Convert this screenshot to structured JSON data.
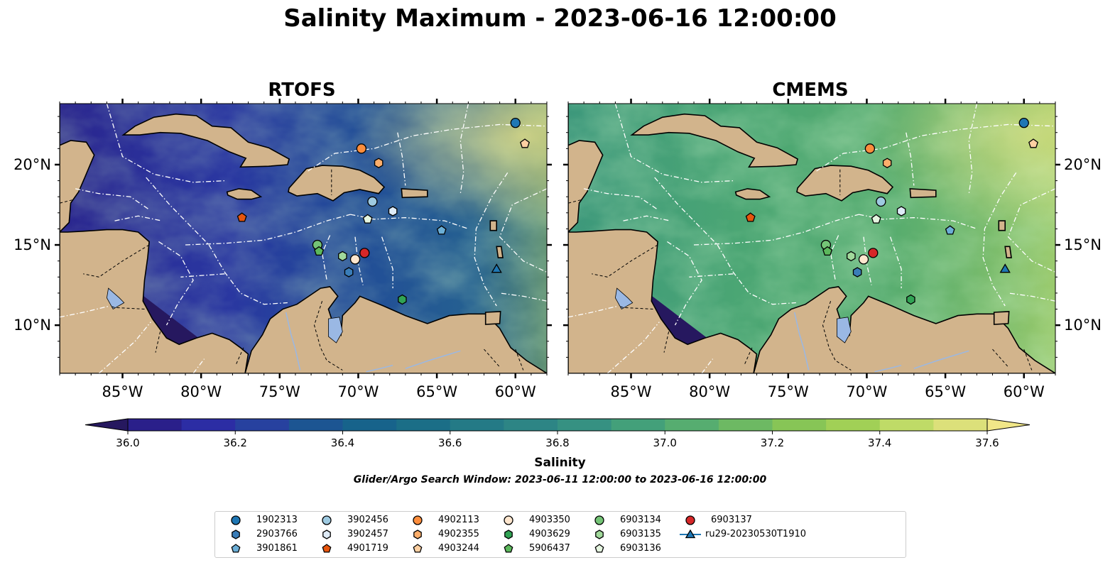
{
  "figure": {
    "title": "Salinity Maximum - 2023-06-16 12:00:00",
    "panels": [
      {
        "title": "RTOFS"
      },
      {
        "title": "CMEMS"
      }
    ],
    "lat_ticks": [
      "20°N",
      "15°N",
      "10°N"
    ],
    "lon_ticks": [
      "85°W",
      "80°W",
      "75°W",
      "70°W",
      "65°W",
      "60°W"
    ],
    "colorbar": {
      "label": "Salinity",
      "ticks": [
        "36.0",
        "36.2",
        "36.4",
        "36.6",
        "36.8",
        "37.0",
        "37.2",
        "37.4",
        "37.6"
      ],
      "range": [
        36.0,
        37.6
      ],
      "extend": "both",
      "colormap": "haline-like",
      "colors": [
        "#26185f",
        "#2a1f8a",
        "#2c2da4",
        "#27419f",
        "#1c5592",
        "#17638b",
        "#1b6e87",
        "#247a86",
        "#2d8585",
        "#369182",
        "#43a07a",
        "#56ad70",
        "#6db963",
        "#87c556",
        "#a1d056",
        "#bfdb67",
        "#dce07a",
        "#f1e788"
      ]
    },
    "search_window": "Glider/Argo Search Window: 2023-06-11 12:00:00 to 2023-06-16 12:00:00",
    "land_color": "#d2b48c",
    "lake_color": "#9ab8e4"
  },
  "legend": [
    {
      "label": "1902313",
      "marker": "circle",
      "color": "#1f77b4"
    },
    {
      "label": "2903766",
      "marker": "hexagon",
      "color": "#3a7db8"
    },
    {
      "label": "3901861",
      "marker": "pentagon",
      "color": "#6baed6"
    },
    {
      "label": "3902456",
      "marker": "circle",
      "color": "#9ecae1"
    },
    {
      "label": "3902457",
      "marker": "hexagon",
      "color": "#deebf7"
    },
    {
      "label": "4901719",
      "marker": "pentagon",
      "color": "#e6550d"
    },
    {
      "label": "4902113",
      "marker": "circle",
      "color": "#fd8d3c"
    },
    {
      "label": "4902355",
      "marker": "hexagon",
      "color": "#fdae6b"
    },
    {
      "label": "4903244",
      "marker": "pentagon",
      "color": "#fdd0a2"
    },
    {
      "label": "4903350",
      "marker": "circle",
      "color": "#fee6ce"
    },
    {
      "label": "4903629",
      "marker": "hexagon",
      "color": "#31a354"
    },
    {
      "label": "5906437",
      "marker": "pentagon",
      "color": "#5cb85c"
    },
    {
      "label": "6903134",
      "marker": "circle",
      "color": "#74c476"
    },
    {
      "label": "6903135",
      "marker": "hexagon",
      "color": "#a1d99b"
    },
    {
      "label": "6903136",
      "marker": "pentagon",
      "color": "#e5f5e0"
    },
    {
      "label": "6903137",
      "marker": "circle",
      "color": "#d62728"
    },
    {
      "label": "ru29-20230530T1910",
      "marker": "triangle-line",
      "color": "#1f77b4"
    }
  ],
  "observations": [
    {
      "id": "1902313",
      "lon": -60.0,
      "lat": 22.6
    },
    {
      "id": "4903244",
      "lon": -59.4,
      "lat": 21.3
    },
    {
      "id": "4902113",
      "lon": -69.8,
      "lat": 21.0
    },
    {
      "id": "4902355",
      "lon": -68.7,
      "lat": 20.1
    },
    {
      "id": "3902456",
      "lon": -69.1,
      "lat": 17.7
    },
    {
      "id": "3902457",
      "lon": -67.8,
      "lat": 17.1
    },
    {
      "id": "6903136",
      "lon": -69.4,
      "lat": 16.6
    },
    {
      "id": "4901719",
      "lon": -77.4,
      "lat": 16.7
    },
    {
      "id": "3901861",
      "lon": -64.7,
      "lat": 15.9
    },
    {
      "id": "6903134",
      "lon": -72.6,
      "lat": 15.0
    },
    {
      "id": "5906437",
      "lon": -72.5,
      "lat": 14.6
    },
    {
      "id": "6903135",
      "lon": -71.0,
      "lat": 14.3
    },
    {
      "id": "4903350",
      "lon": -70.2,
      "lat": 14.1
    },
    {
      "id": "6903137",
      "lon": -69.6,
      "lat": 14.5
    },
    {
      "id": "2903766",
      "lon": -70.6,
      "lat": 13.3
    },
    {
      "id": "4903629",
      "lon": -67.2,
      "lat": 11.6
    },
    {
      "id": "ru29-20230530T1910",
      "lon": -61.2,
      "lat": 13.5
    }
  ]
}
